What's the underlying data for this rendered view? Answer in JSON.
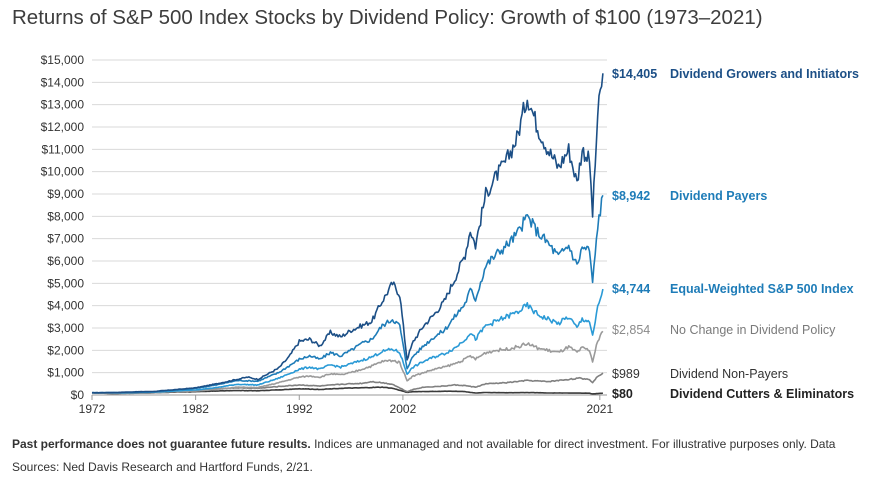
{
  "title": "Returns of S&P 500 Index Stocks by Dividend Policy: Growth of $100 (1973–2021)",
  "footnote": {
    "bold": "Past performance does not guarantee future results.",
    "text": " Indices are unmanaged and not available for direct investment. For illustrative purposes only. Data Sources: Ned Davis Research and Hartford Funds, 2/21."
  },
  "chart_data": {
    "type": "line",
    "title": "Returns of S&P 500 Index Stocks by Dividend Policy: Growth of $100 (1973–2021)",
    "xlabel": "",
    "ylabel": "",
    "xlim": [
      1972,
      2021.5
    ],
    "ylim": [
      0,
      15000
    ],
    "x_ticks": [
      1972,
      1982,
      1992,
      2002,
      2021
    ],
    "x_tick_labels": [
      "1972",
      "1982",
      "1992",
      "2002",
      "2021"
    ],
    "y_ticks": [
      0,
      1000,
      2000,
      3000,
      4000,
      5000,
      6000,
      7000,
      8000,
      9000,
      10000,
      11000,
      12000,
      13000,
      14000,
      15000
    ],
    "y_tick_labels": [
      "$0",
      "$1,000",
      "$2,000",
      "$3,000",
      "$4,000",
      "$5,000",
      "$6,000",
      "$7,000",
      "$8,000",
      "$9,000",
      "$10,000",
      "$11,000",
      "$12,000",
      "$13,000",
      "$14,000",
      "$15,000"
    ],
    "grid": true,
    "legend": "right, end-of-line labels",
    "series": [
      {
        "name": "Dividend Growers and Initiators",
        "end_label": "$14,405",
        "color": "#1c4f86",
        "points": [
          [
            1972,
            100
          ],
          [
            1974,
            110
          ],
          [
            1976,
            140
          ],
          [
            1978,
            160
          ],
          [
            1980,
            240
          ],
          [
            1982,
            320
          ],
          [
            1984,
            500
          ],
          [
            1986,
            700
          ],
          [
            1987,
            800
          ],
          [
            1988,
            700
          ],
          [
            1990,
            1200
          ],
          [
            1991,
            1700
          ],
          [
            1992,
            2400
          ],
          [
            1993,
            2500
          ],
          [
            1994,
            2200
          ],
          [
            1995,
            2800
          ],
          [
            1996,
            2600
          ],
          [
            1997,
            2900
          ],
          [
            1998,
            3100
          ],
          [
            1999,
            3300
          ],
          [
            2000,
            4200
          ],
          [
            2001,
            5000
          ],
          [
            2001.7,
            4500
          ],
          [
            2002.4,
            1600
          ],
          [
            2003,
            2400
          ],
          [
            2004,
            3100
          ],
          [
            2005,
            3600
          ],
          [
            2006,
            4200
          ],
          [
            2007,
            5200
          ],
          [
            2008,
            6300
          ],
          [
            2008.5,
            7400
          ],
          [
            2009,
            6700
          ],
          [
            2010,
            9000
          ],
          [
            2011,
            9800
          ],
          [
            2012,
            10500
          ],
          [
            2013,
            11500
          ],
          [
            2014,
            13400
          ],
          [
            2015,
            12000
          ],
          [
            2016,
            11000
          ],
          [
            2017,
            10200
          ],
          [
            2018,
            11000
          ],
          [
            2018.8,
            9500
          ],
          [
            2019.3,
            11000
          ],
          [
            2020,
            10500
          ],
          [
            2020.3,
            8100
          ],
          [
            2020.8,
            12500
          ],
          [
            2021.3,
            14405
          ]
        ]
      },
      {
        "name": "Dividend Payers",
        "end_label": "$8,942",
        "color": "#1e7cb8",
        "points": [
          [
            1972,
            100
          ],
          [
            1975,
            110
          ],
          [
            1978,
            140
          ],
          [
            1980,
            220
          ],
          [
            1982,
            300
          ],
          [
            1984,
            450
          ],
          [
            1986,
            650
          ],
          [
            1988,
            620
          ],
          [
            1990,
            1000
          ],
          [
            1992,
            1600
          ],
          [
            1993,
            1750
          ],
          [
            1994,
            1600
          ],
          [
            1995,
            1900
          ],
          [
            1996,
            1750
          ],
          [
            1997,
            2000
          ],
          [
            1998,
            2300
          ],
          [
            1999,
            2500
          ],
          [
            2000,
            3100
          ],
          [
            2001,
            3400
          ],
          [
            2001.7,
            3100
          ],
          [
            2002.4,
            1200
          ],
          [
            2003,
            1750
          ],
          [
            2004,
            2200
          ],
          [
            2005,
            2600
          ],
          [
            2006,
            2900
          ],
          [
            2007,
            3500
          ],
          [
            2008,
            4100
          ],
          [
            2008.5,
            4700
          ],
          [
            2009,
            4300
          ],
          [
            2010,
            5800
          ],
          [
            2011,
            6300
          ],
          [
            2012,
            6700
          ],
          [
            2013,
            7200
          ],
          [
            2014,
            8000
          ],
          [
            2015,
            7300
          ],
          [
            2016,
            6800
          ],
          [
            2017,
            6200
          ],
          [
            2018,
            6700
          ],
          [
            2018.8,
            5800
          ],
          [
            2019.3,
            6600
          ],
          [
            2020,
            6500
          ],
          [
            2020.3,
            5000
          ],
          [
            2020.8,
            7600
          ],
          [
            2021.3,
            8942
          ]
        ]
      },
      {
        "name": "Equal-Weighted S&P 500 Index",
        "end_label": "$4,744",
        "color": "#2a9ad6",
        "points": [
          [
            1972,
            100
          ],
          [
            1975,
            100
          ],
          [
            1978,
            130
          ],
          [
            1980,
            180
          ],
          [
            1982,
            230
          ],
          [
            1984,
            330
          ],
          [
            1986,
            480
          ],
          [
            1988,
            450
          ],
          [
            1990,
            750
          ],
          [
            1992,
            1150
          ],
          [
            1993,
            1250
          ],
          [
            1994,
            1150
          ],
          [
            1995,
            1350
          ],
          [
            1996,
            1250
          ],
          [
            1997,
            1400
          ],
          [
            1998,
            1550
          ],
          [
            1999,
            1700
          ],
          [
            2000,
            1950
          ],
          [
            2001,
            2050
          ],
          [
            2001.7,
            1900
          ],
          [
            2002.4,
            950
          ],
          [
            2003,
            1250
          ],
          [
            2004,
            1500
          ],
          [
            2005,
            1700
          ],
          [
            2006,
            1850
          ],
          [
            2007,
            2100
          ],
          [
            2008,
            2500
          ],
          [
            2008.5,
            2800
          ],
          [
            2009,
            2500
          ],
          [
            2010,
            3100
          ],
          [
            2011,
            3300
          ],
          [
            2012,
            3500
          ],
          [
            2013,
            3700
          ],
          [
            2014,
            4000
          ],
          [
            2015,
            3600
          ],
          [
            2016,
            3400
          ],
          [
            2017,
            3200
          ],
          [
            2018,
            3500
          ],
          [
            2018.8,
            3000
          ],
          [
            2019.3,
            3400
          ],
          [
            2020,
            3300
          ],
          [
            2020.3,
            2600
          ],
          [
            2020.8,
            3900
          ],
          [
            2021.3,
            4744
          ]
        ]
      },
      {
        "name": "No Change in Dividend Policy",
        "end_label": "$2,854",
        "color": "#9a9a9a",
        "points": [
          [
            1972,
            100
          ],
          [
            1975,
            90
          ],
          [
            1978,
            110
          ],
          [
            1980,
            150
          ],
          [
            1982,
            180
          ],
          [
            1984,
            250
          ],
          [
            1986,
            350
          ],
          [
            1988,
            330
          ],
          [
            1990,
            550
          ],
          [
            1992,
            800
          ],
          [
            1993,
            850
          ],
          [
            1994,
            800
          ],
          [
            1995,
            950
          ],
          [
            1996,
            900
          ],
          [
            1997,
            1000
          ],
          [
            1998,
            1150
          ],
          [
            1999,
            1300
          ],
          [
            2000,
            1500
          ],
          [
            2001,
            1550
          ],
          [
            2001.7,
            1450
          ],
          [
            2002.4,
            650
          ],
          [
            2003,
            850
          ],
          [
            2004,
            1000
          ],
          [
            2005,
            1150
          ],
          [
            2006,
            1250
          ],
          [
            2007,
            1400
          ],
          [
            2008,
            1600
          ],
          [
            2008.5,
            1750
          ],
          [
            2009,
            1600
          ],
          [
            2010,
            1900
          ],
          [
            2011,
            2000
          ],
          [
            2012,
            2050
          ],
          [
            2013,
            2150
          ],
          [
            2014,
            2300
          ],
          [
            2015,
            2100
          ],
          [
            2016,
            2000
          ],
          [
            2017,
            1900
          ],
          [
            2018,
            2150
          ],
          [
            2018.8,
            1900
          ],
          [
            2019.3,
            2100
          ],
          [
            2020,
            2000
          ],
          [
            2020.3,
            1500
          ],
          [
            2020.8,
            2400
          ],
          [
            2021.3,
            2854
          ]
        ]
      },
      {
        "name": "Dividend Non-Payers",
        "end_label": "$989",
        "color": "#808080",
        "points": [
          [
            1972,
            100
          ],
          [
            1974,
            60
          ],
          [
            1976,
            80
          ],
          [
            1978,
            100
          ],
          [
            1980,
            180
          ],
          [
            1982,
            220
          ],
          [
            1984,
            280
          ],
          [
            1986,
            320
          ],
          [
            1988,
            300
          ],
          [
            1990,
            380
          ],
          [
            1992,
            450
          ],
          [
            1994,
            400
          ],
          [
            1996,
            480
          ],
          [
            1998,
            520
          ],
          [
            1999,
            600
          ],
          [
            2000,
            550
          ],
          [
            2001,
            480
          ],
          [
            2002.4,
            150
          ],
          [
            2003,
            250
          ],
          [
            2004,
            350
          ],
          [
            2006,
            400
          ],
          [
            2007,
            450
          ],
          [
            2008,
            420
          ],
          [
            2009,
            350
          ],
          [
            2010,
            500
          ],
          [
            2012,
            550
          ],
          [
            2014,
            650
          ],
          [
            2016,
            600
          ],
          [
            2018,
            700
          ],
          [
            2019,
            750
          ],
          [
            2020,
            700
          ],
          [
            2020.3,
            550
          ],
          [
            2020.8,
            850
          ],
          [
            2021.3,
            989
          ]
        ]
      },
      {
        "name": "Dividend Cutters & Eliminators",
        "end_label": "$80",
        "color": "#3a3a3a",
        "points": [
          [
            1972,
            100
          ],
          [
            1974,
            70
          ],
          [
            1976,
            90
          ],
          [
            1978,
            100
          ],
          [
            1980,
            130
          ],
          [
            1982,
            150
          ],
          [
            1984,
            180
          ],
          [
            1986,
            200
          ],
          [
            1988,
            190
          ],
          [
            1990,
            230
          ],
          [
            1992,
            280
          ],
          [
            1994,
            250
          ],
          [
            1996,
            300
          ],
          [
            1998,
            320
          ],
          [
            2000,
            350
          ],
          [
            2001,
            300
          ],
          [
            2002.4,
            120
          ],
          [
            2003,
            150
          ],
          [
            2005,
            160
          ],
          [
            2007,
            170
          ],
          [
            2008,
            150
          ],
          [
            2009,
            90
          ],
          [
            2010,
            110
          ],
          [
            2012,
            100
          ],
          [
            2014,
            110
          ],
          [
            2016,
            90
          ],
          [
            2018,
            90
          ],
          [
            2020,
            80
          ],
          [
            2020.3,
            50
          ],
          [
            2021.3,
            80
          ]
        ]
      }
    ]
  }
}
